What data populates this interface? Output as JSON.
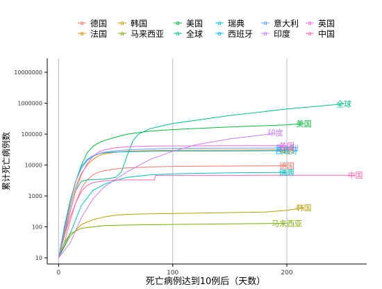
{
  "chart_data": {
    "type": "line",
    "title": "",
    "xlabel": "死亡病例达到10例后（天数）",
    "ylabel": "累计死亡病例数",
    "xlim": [
      -10,
      270
    ],
    "ylim_log10": [
      0.8,
      7.45
    ],
    "y_scale": "log",
    "x_ticks": [
      0,
      100,
      200
    ],
    "y_ticks": [
      10,
      100,
      1000,
      10000,
      100000,
      1000000,
      10000000
    ],
    "y_tick_labels": [
      "10",
      "100",
      "1000",
      "10000",
      "100000",
      "1000000",
      "10000000"
    ],
    "grid": "vertical major lines only",
    "legend_position": "top",
    "series": [
      {
        "name": "德国",
        "color": "#F8766D",
        "points": [
          [
            0,
            10
          ],
          [
            5,
            30
          ],
          [
            10,
            150
          ],
          [
            15,
            600
          ],
          [
            20,
            1800
          ],
          [
            25,
            3300
          ],
          [
            30,
            4800
          ],
          [
            35,
            5900
          ],
          [
            40,
            6600
          ],
          [
            50,
            7500
          ],
          [
            60,
            8100
          ],
          [
            80,
            8700
          ],
          [
            100,
            9000
          ],
          [
            150,
            9300
          ],
          [
            200,
            9500
          ]
        ],
        "end_label": "德国"
      },
      {
        "name": "法国",
        "color": "#E08B00",
        "points": [
          [
            0,
            10
          ],
          [
            5,
            60
          ],
          [
            10,
            450
          ],
          [
            15,
            2000
          ],
          [
            20,
            5500
          ],
          [
            25,
            10000
          ],
          [
            30,
            15000
          ],
          [
            35,
            20000
          ],
          [
            40,
            23000
          ],
          [
            50,
            26000
          ],
          [
            60,
            28000
          ],
          [
            80,
            29500
          ],
          [
            100,
            30000
          ],
          [
            150,
            30500
          ],
          [
            200,
            31000
          ]
        ],
        "end_label": "法国"
      },
      {
        "name": "韩国",
        "color": "#B79F00",
        "points": [
          [
            0,
            10
          ],
          [
            10,
            50
          ],
          [
            20,
            120
          ],
          [
            30,
            170
          ],
          [
            40,
            210
          ],
          [
            50,
            240
          ],
          [
            60,
            255
          ],
          [
            80,
            265
          ],
          [
            100,
            270
          ],
          [
            150,
            290
          ],
          [
            180,
            300
          ],
          [
            200,
            340
          ],
          [
            215,
            420
          ]
        ],
        "end_label": "韩国"
      },
      {
        "name": "马来西亚",
        "color": "#7CAE00",
        "points": [
          [
            0,
            10
          ],
          [
            5,
            30
          ],
          [
            10,
            60
          ],
          [
            20,
            90
          ],
          [
            30,
            100
          ],
          [
            40,
            110
          ],
          [
            60,
            115
          ],
          [
            100,
            120
          ],
          [
            150,
            125
          ],
          [
            200,
            130
          ]
        ],
        "end_label": "马来西亚"
      },
      {
        "name": "美国",
        "color": "#00BA38",
        "points": [
          [
            0,
            10
          ],
          [
            5,
            80
          ],
          [
            10,
            600
          ],
          [
            15,
            3000
          ],
          [
            20,
            10000
          ],
          [
            25,
            25000
          ],
          [
            30,
            40000
          ],
          [
            35,
            52000
          ],
          [
            40,
            62000
          ],
          [
            50,
            80000
          ],
          [
            60,
            100000
          ],
          [
            80,
            125000
          ],
          [
            100,
            140000
          ],
          [
            150,
            170000
          ],
          [
            200,
            200000
          ],
          [
            215,
            220000
          ]
        ],
        "end_label": "美国"
      },
      {
        "name": "全球",
        "color": "#00C08B",
        "points": [
          [
            0,
            10
          ],
          [
            5,
            50
          ],
          [
            10,
            300
          ],
          [
            15,
            1500
          ],
          [
            20,
            3000
          ],
          [
            25,
            3300
          ],
          [
            30,
            3400
          ],
          [
            40,
            3500
          ],
          [
            50,
            4000
          ],
          [
            55,
            6000
          ],
          [
            60,
            20000
          ],
          [
            65,
            60000
          ],
          [
            70,
            100000
          ],
          [
            80,
            150000
          ],
          [
            100,
            220000
          ],
          [
            150,
            400000
          ],
          [
            200,
            650000
          ],
          [
            250,
            950000
          ]
        ],
        "end_label": "全球"
      },
      {
        "name": "瑞典",
        "color": "#00BFC4",
        "points": [
          [
            0,
            10
          ],
          [
            10,
            60
          ],
          [
            20,
            500
          ],
          [
            30,
            1500
          ],
          [
            40,
            2400
          ],
          [
            50,
            3200
          ],
          [
            60,
            4000
          ],
          [
            80,
            4800
          ],
          [
            100,
            5200
          ],
          [
            150,
            5600
          ],
          [
            200,
            5800
          ]
        ],
        "end_label": "瑞典"
      },
      {
        "name": "西班牙",
        "color": "#00B4F0",
        "points": [
          [
            0,
            10
          ],
          [
            5,
            100
          ],
          [
            10,
            700
          ],
          [
            15,
            3000
          ],
          [
            20,
            9000
          ],
          [
            25,
            15000
          ],
          [
            30,
            20000
          ],
          [
            35,
            23000
          ],
          [
            40,
            25000
          ],
          [
            50,
            26500
          ],
          [
            60,
            27000
          ],
          [
            100,
            28400
          ],
          [
            150,
            28400
          ],
          [
            200,
            29000
          ]
        ],
        "end_label": "西班牙"
      },
      {
        "name": "意大利",
        "color": "#619CFF",
        "points": [
          [
            0,
            10
          ],
          [
            5,
            80
          ],
          [
            10,
            600
          ],
          [
            15,
            3000
          ],
          [
            20,
            8000
          ],
          [
            25,
            14000
          ],
          [
            30,
            19000
          ],
          [
            35,
            23000
          ],
          [
            40,
            26000
          ],
          [
            50,
            29000
          ],
          [
            60,
            31000
          ],
          [
            80,
            33000
          ],
          [
            100,
            34500
          ],
          [
            150,
            35000
          ],
          [
            200,
            35500
          ]
        ],
        "end_label": "意大利"
      },
      {
        "name": "印度",
        "color": "#C77CFF",
        "points": [
          [
            0,
            10
          ],
          [
            10,
            30
          ],
          [
            20,
            200
          ],
          [
            30,
            800
          ],
          [
            40,
            2000
          ],
          [
            50,
            3500
          ],
          [
            60,
            6000
          ],
          [
            80,
            15000
          ],
          [
            100,
            28000
          ],
          [
            120,
            45000
          ],
          [
            150,
            70000
          ],
          [
            180,
            95000
          ],
          [
            190,
            110000
          ]
        ],
        "end_label": "印度"
      },
      {
        "name": "英国",
        "color": "#F564E3",
        "points": [
          [
            0,
            10
          ],
          [
            5,
            50
          ],
          [
            10,
            300
          ],
          [
            15,
            1500
          ],
          [
            20,
            5000
          ],
          [
            25,
            11000
          ],
          [
            30,
            19000
          ],
          [
            35,
            26000
          ],
          [
            40,
            31000
          ],
          [
            50,
            36000
          ],
          [
            60,
            39000
          ],
          [
            80,
            41000
          ],
          [
            100,
            41500
          ],
          [
            150,
            42000
          ],
          [
            200,
            42000
          ]
        ],
        "end_label": "英国"
      },
      {
        "name": "中国",
        "color": "#FF64B0",
        "points": [
          [
            0,
            10
          ],
          [
            5,
            50
          ],
          [
            10,
            200
          ],
          [
            15,
            600
          ],
          [
            20,
            1400
          ],
          [
            25,
            2200
          ],
          [
            30,
            2700
          ],
          [
            40,
            3100
          ],
          [
            50,
            3250
          ],
          [
            60,
            3300
          ],
          [
            84,
            3300
          ],
          [
            85,
            4630
          ],
          [
            100,
            4634
          ],
          [
            150,
            4634
          ],
          [
            200,
            4700
          ],
          [
            260,
            4700
          ]
        ],
        "end_label": "中国"
      }
    ]
  }
}
